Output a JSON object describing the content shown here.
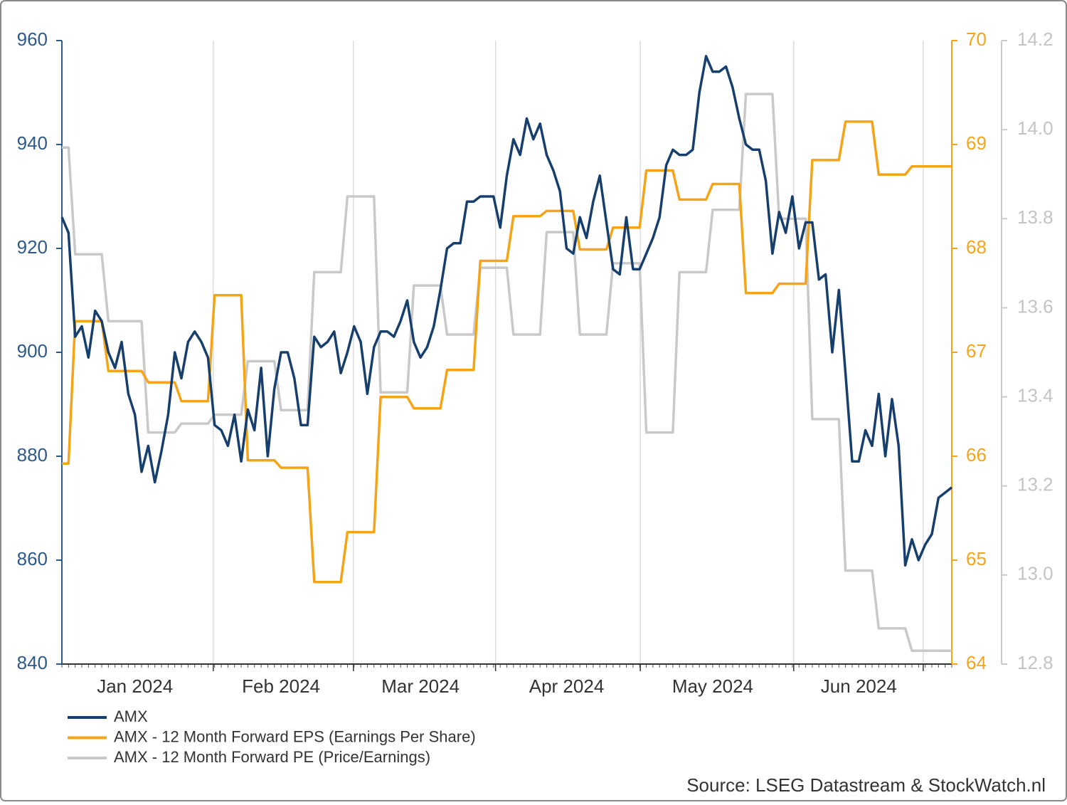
{
  "chart_data": {
    "type": "line",
    "categories": [
      null,
      null,
      null,
      null,
      null,
      null,
      null,
      null,
      null,
      null,
      null,
      "Jan 2024",
      null,
      null,
      null,
      null,
      null,
      null,
      null,
      null,
      null,
      null,
      null,
      null,
      null,
      null,
      null,
      null,
      null,
      null,
      null,
      null,
      null,
      "Feb 2024",
      null,
      null,
      null,
      null,
      null,
      null,
      null,
      null,
      null,
      null,
      null,
      null,
      null,
      null,
      null,
      null,
      null,
      null,
      null,
      null,
      "Mar 2024",
      null,
      null,
      null,
      null,
      null,
      null,
      null,
      null,
      null,
      null,
      null,
      null,
      null,
      null,
      null,
      null,
      null,
      null,
      null,
      null,
      null,
      "Apr 2024",
      null,
      null,
      null,
      null,
      null,
      null,
      null,
      null,
      null,
      null,
      null,
      null,
      null,
      null,
      null,
      null,
      null,
      null,
      null,
      null,
      null,
      "May 2024",
      null,
      null,
      null,
      null,
      null,
      null,
      null,
      null,
      null,
      null,
      null,
      null,
      null,
      null,
      null,
      null,
      null,
      null,
      null,
      null,
      null,
      "Jun 2024",
      null,
      null,
      null,
      null,
      null,
      null,
      null,
      null,
      null,
      null,
      null,
      null,
      null,
      null
    ],
    "series": [
      {
        "name": "AMX",
        "color": "#173f6e",
        "axis": "y",
        "values": [
          926,
          923,
          903,
          905,
          899,
          908,
          906,
          900,
          897,
          902,
          892,
          888,
          877,
          882,
          875,
          881,
          888,
          900,
          895,
          902,
          904,
          902,
          899,
          886,
          885,
          882,
          888,
          879,
          889,
          885,
          897,
          880,
          893,
          900,
          900,
          895,
          886,
          886,
          903,
          901,
          902,
          904,
          896,
          900,
          905,
          902,
          892,
          901,
          904,
          904,
          903,
          906,
          910,
          902,
          899,
          901,
          905,
          912,
          920,
          921,
          921,
          929,
          929,
          930,
          930,
          930,
          924,
          934,
          941,
          938,
          945,
          941,
          944,
          938,
          935,
          931,
          920,
          919,
          926,
          922,
          929,
          934,
          925,
          916,
          915,
          926,
          916,
          916,
          919,
          922,
          926,
          936,
          939,
          938,
          938,
          939,
          950,
          957,
          954,
          954,
          955,
          951,
          945,
          940,
          939,
          939,
          933,
          919,
          927,
          923,
          930,
          920,
          925,
          925,
          914,
          915,
          900,
          912,
          896,
          879,
          879,
          885,
          882,
          892,
          880,
          891,
          882,
          859,
          864,
          860,
          863,
          865,
          872,
          873,
          874
        ]
      },
      {
        "name": "AMX - 12 Month Forward EPS (Earnings Per Share)",
        "color": "#f5a418",
        "axis": "y2",
        "values": [
          65.93,
          65.93,
          67.3,
          67.3,
          67.3,
          67.3,
          67.3,
          66.82,
          66.82,
          66.82,
          66.82,
          66.82,
          66.82,
          66.71,
          66.71,
          66.71,
          66.71,
          66.71,
          66.53,
          66.53,
          66.53,
          66.53,
          66.53,
          67.55,
          67.55,
          67.55,
          67.55,
          67.55,
          65.96,
          65.96,
          65.96,
          65.96,
          65.96,
          65.89,
          65.89,
          65.89,
          65.89,
          65.89,
          64.79,
          64.79,
          64.79,
          64.79,
          64.79,
          65.27,
          65.27,
          65.27,
          65.27,
          65.27,
          66.57,
          66.57,
          66.57,
          66.57,
          66.57,
          66.46,
          66.46,
          66.46,
          66.46,
          66.46,
          66.83,
          66.83,
          66.83,
          66.83,
          66.83,
          67.88,
          67.88,
          67.88,
          67.88,
          67.88,
          68.31,
          68.31,
          68.31,
          68.31,
          68.31,
          68.36,
          68.36,
          68.36,
          68.36,
          68.36,
          67.99,
          67.99,
          67.99,
          67.99,
          67.99,
          68.2,
          68.2,
          68.2,
          68.2,
          68.2,
          68.75,
          68.75,
          68.75,
          68.75,
          68.75,
          68.47,
          68.47,
          68.47,
          68.47,
          68.47,
          68.62,
          68.62,
          68.62,
          68.62,
          68.62,
          67.57,
          67.57,
          67.57,
          67.57,
          67.57,
          67.66,
          67.66,
          67.66,
          67.66,
          67.66,
          68.85,
          68.85,
          68.85,
          68.85,
          68.85,
          69.22,
          69.22,
          69.22,
          69.22,
          69.22,
          68.71,
          68.71,
          68.71,
          68.71,
          68.71,
          68.79,
          68.79,
          68.79,
          68.79,
          68.79,
          68.79,
          68.79
        ]
      },
      {
        "name": "AMX - 12 Month Forward PE (Price/Earnings)",
        "color": "#c9c9c9",
        "axis": "y3",
        "values": [
          13.96,
          13.96,
          13.72,
          13.72,
          13.72,
          13.72,
          13.72,
          13.57,
          13.57,
          13.57,
          13.57,
          13.57,
          13.57,
          13.32,
          13.32,
          13.32,
          13.32,
          13.32,
          13.34,
          13.34,
          13.34,
          13.34,
          13.34,
          13.36,
          13.36,
          13.36,
          13.36,
          13.36,
          13.48,
          13.48,
          13.48,
          13.48,
          13.48,
          13.37,
          13.37,
          13.37,
          13.37,
          13.37,
          13.68,
          13.68,
          13.68,
          13.68,
          13.68,
          13.85,
          13.85,
          13.85,
          13.85,
          13.85,
          13.41,
          13.41,
          13.41,
          13.41,
          13.41,
          13.65,
          13.65,
          13.65,
          13.65,
          13.65,
          13.54,
          13.54,
          13.54,
          13.54,
          13.54,
          13.69,
          13.69,
          13.69,
          13.69,
          13.69,
          13.54,
          13.54,
          13.54,
          13.54,
          13.54,
          13.77,
          13.77,
          13.77,
          13.77,
          13.77,
          13.54,
          13.54,
          13.54,
          13.54,
          13.54,
          13.7,
          13.7,
          13.7,
          13.7,
          13.7,
          13.32,
          13.32,
          13.32,
          13.32,
          13.32,
          13.68,
          13.68,
          13.68,
          13.68,
          13.68,
          13.82,
          13.82,
          13.82,
          13.82,
          13.82,
          14.08,
          14.08,
          14.08,
          14.08,
          14.08,
          13.8,
          13.8,
          13.8,
          13.8,
          13.8,
          13.35,
          13.35,
          13.35,
          13.35,
          13.35,
          13.01,
          13.01,
          13.01,
          13.01,
          13.01,
          12.88,
          12.88,
          12.88,
          12.88,
          12.88,
          12.83,
          12.83,
          12.83,
          12.83,
          12.83,
          12.83,
          12.83
        ]
      }
    ],
    "ylim": [
      840,
      960
    ],
    "yticks": [
      840,
      860,
      880,
      900,
      920,
      940,
      960
    ],
    "y2lim": [
      64,
      70
    ],
    "y2ticks": [
      64,
      65,
      66,
      67,
      68,
      69,
      70
    ],
    "y3lim": [
      12.8,
      14.2
    ],
    "y3ticks": [
      12.8,
      {
        "value": 13,
        "label": "13.0"
      },
      13.2,
      13.4,
      13.6,
      13.8,
      {
        "value": 14,
        "label": "14.0"
      },
      14.2
    ],
    "grid": true,
    "source": "Source: LSEG Datastream & StockWatch.nl"
  }
}
